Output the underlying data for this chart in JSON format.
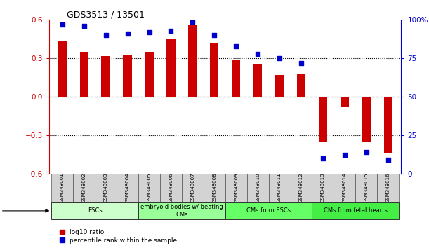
{
  "title": "GDS3513 / 13501",
  "samples": [
    "GSM348001",
    "GSM348002",
    "GSM348003",
    "GSM348004",
    "GSM348005",
    "GSM348006",
    "GSM348007",
    "GSM348008",
    "GSM348009",
    "GSM348010",
    "GSM348011",
    "GSM348012",
    "GSM348013",
    "GSM348014",
    "GSM348015",
    "GSM348016"
  ],
  "log10_ratio": [
    0.44,
    0.35,
    0.32,
    0.33,
    0.35,
    0.45,
    0.56,
    0.42,
    0.29,
    0.26,
    0.17,
    0.18,
    -0.35,
    -0.08,
    -0.35,
    -0.44
  ],
  "percentile_rank": [
    97,
    96,
    90,
    91,
    92,
    93,
    99,
    90,
    83,
    78,
    75,
    72,
    10,
    12,
    14,
    9
  ],
  "cell_groups": [
    {
      "label": "ESCs",
      "start": 0,
      "end": 4,
      "color": "#ccffcc"
    },
    {
      "label": "embryoid bodies w/ beating\nCMs",
      "start": 4,
      "end": 8,
      "color": "#99ff99"
    },
    {
      "label": "CMs from ESCs",
      "start": 8,
      "end": 12,
      "color": "#66ff66"
    },
    {
      "label": "CMs from fetal hearts",
      "start": 12,
      "end": 16,
      "color": "#44ee44"
    }
  ],
  "bar_color": "#cc0000",
  "dot_color": "#0000cc",
  "ylim_left": [
    -0.6,
    0.6
  ],
  "ylim_right": [
    0,
    100
  ],
  "yticks_left": [
    -0.6,
    -0.3,
    0,
    0.3,
    0.6
  ],
  "yticks_right": [
    0,
    25,
    50,
    75,
    100
  ],
  "ytick_labels_right": [
    "0",
    "25",
    "50",
    "75",
    "100%"
  ],
  "hlines": [
    0.3,
    0.0,
    -0.3
  ],
  "hline_styles": [
    "dotted",
    "dashed",
    "dotted"
  ],
  "background_color": "#ffffff",
  "bar_width": 0.4,
  "figsize": [
    6.11,
    3.54
  ],
  "dpi": 100
}
